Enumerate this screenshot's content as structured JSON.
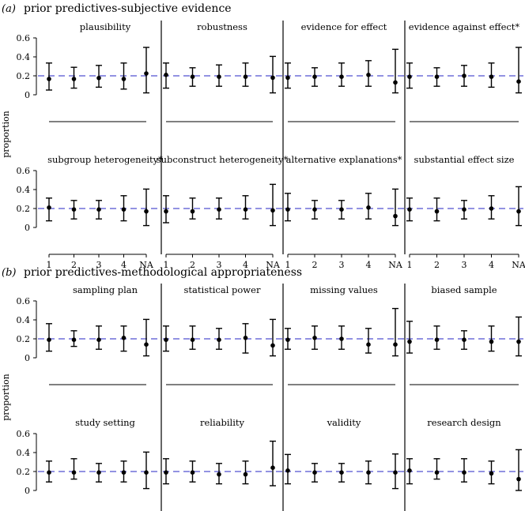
{
  "figure": {
    "section_a_label": "(a)",
    "section_a_title": "prior predictives-subjective evidence",
    "section_b_label": "(b)",
    "section_b_title": "prior predictives-methodological appropriateness",
    "ylabel": "proportion",
    "reference_line": 0.2,
    "colors": {
      "reference": "#6f6fd8",
      "marks": "#000000"
    }
  },
  "chart_data": [
    {
      "type": "errorbar",
      "title": "plausibility",
      "section": "a",
      "row": 0,
      "col": 0,
      "categories": [
        "1",
        "2",
        "3",
        "4",
        "NA"
      ],
      "ylim": [
        0,
        0.6
      ],
      "yticks": [
        "0",
        "0.2",
        "0.4",
        "0.6"
      ],
      "ylabel": "proportion",
      "hline": 0.2,
      "points": [
        0.167,
        0.167,
        0.177,
        0.167,
        0.225
      ],
      "lower": [
        0.05,
        0.07,
        0.08,
        0.06,
        0.02
      ],
      "upper": [
        0.335,
        0.29,
        0.31,
        0.335,
        0.5
      ]
    },
    {
      "type": "errorbar",
      "title": "robustness",
      "section": "a",
      "row": 0,
      "col": 1,
      "categories": [
        "1",
        "2",
        "3",
        "4",
        "NA"
      ],
      "ylim": [
        0,
        0.6
      ],
      "hline": 0.2,
      "points": [
        0.21,
        0.19,
        0.19,
        0.19,
        0.18
      ],
      "lower": [
        0.07,
        0.09,
        0.09,
        0.09,
        0.02
      ],
      "upper": [
        0.335,
        0.285,
        0.315,
        0.335,
        0.405
      ]
    },
    {
      "type": "errorbar",
      "title": "evidence for effect",
      "section": "a",
      "row": 0,
      "col": 2,
      "categories": [
        "1",
        "2",
        "3",
        "4",
        "NA"
      ],
      "ylim": [
        0,
        0.6
      ],
      "hline": 0.2,
      "points": [
        0.18,
        0.19,
        0.19,
        0.21,
        0.13
      ],
      "lower": [
        0.07,
        0.09,
        0.09,
        0.09,
        0.02
      ],
      "upper": [
        0.335,
        0.285,
        0.335,
        0.36,
        0.48
      ]
    },
    {
      "type": "errorbar",
      "title": "evidence against effect*",
      "section": "a",
      "row": 0,
      "col": 3,
      "categories": [
        "1",
        "2",
        "3",
        "4",
        "NA"
      ],
      "ylim": [
        0,
        0.6
      ],
      "hline": 0.2,
      "points": [
        0.19,
        0.19,
        0.2,
        0.19,
        0.14
      ],
      "lower": [
        0.07,
        0.09,
        0.09,
        0.08,
        0.02
      ],
      "upper": [
        0.335,
        0.285,
        0.31,
        0.335,
        0.5
      ]
    },
    {
      "type": "errorbar",
      "title": "subgroup heterogeneity*",
      "section": "a",
      "row": 1,
      "col": 0,
      "categories": [
        "1",
        "2",
        "3",
        "4",
        "NA"
      ],
      "ylim": [
        0,
        0.6
      ],
      "yticks": [
        "0",
        "0.2",
        "0.4",
        "0.6"
      ],
      "ylabel": "proportion",
      "hline": 0.2,
      "points": [
        0.21,
        0.19,
        0.19,
        0.19,
        0.17
      ],
      "lower": [
        0.07,
        0.09,
        0.09,
        0.07,
        0.02
      ],
      "upper": [
        0.31,
        0.285,
        0.285,
        0.335,
        0.405
      ]
    },
    {
      "type": "errorbar",
      "title": "subconstruct heterogeneity*",
      "section": "a",
      "row": 1,
      "col": 1,
      "categories": [
        "1",
        "2",
        "3",
        "4",
        "NA"
      ],
      "ylim": [
        0,
        0.6
      ],
      "hline": 0.2,
      "points": [
        0.17,
        0.17,
        0.19,
        0.19,
        0.18
      ],
      "lower": [
        0.05,
        0.09,
        0.09,
        0.09,
        0.02
      ],
      "upper": [
        0.335,
        0.31,
        0.31,
        0.335,
        0.455
      ]
    },
    {
      "type": "errorbar",
      "title": "alternative explanations*",
      "section": "a",
      "row": 1,
      "col": 2,
      "categories": [
        "1",
        "2",
        "3",
        "4",
        "NA"
      ],
      "ylim": [
        0,
        0.6
      ],
      "hline": 0.2,
      "points": [
        0.19,
        0.19,
        0.19,
        0.21,
        0.12
      ],
      "lower": [
        0.07,
        0.09,
        0.09,
        0.09,
        0.02
      ],
      "upper": [
        0.36,
        0.285,
        0.285,
        0.36,
        0.405
      ]
    },
    {
      "type": "errorbar",
      "title": "substantial effect size",
      "section": "a",
      "row": 1,
      "col": 3,
      "categories": [
        "1",
        "2",
        "3",
        "4",
        "NA"
      ],
      "ylim": [
        0,
        0.6
      ],
      "hline": 0.2,
      "points": [
        0.19,
        0.17,
        0.19,
        0.2,
        0.17
      ],
      "lower": [
        0.07,
        0.07,
        0.09,
        0.09,
        0.02
      ],
      "upper": [
        0.31,
        0.31,
        0.285,
        0.335,
        0.43
      ]
    },
    {
      "type": "errorbar",
      "title": "sampling plan",
      "section": "b",
      "row": 0,
      "col": 0,
      "categories": [
        "1",
        "2",
        "3",
        "4",
        "NA"
      ],
      "ylim": [
        0,
        0.6
      ],
      "yticks": [
        "0",
        "0.2",
        "0.4",
        "0.6"
      ],
      "ylabel": "proportion",
      "hline": 0.2,
      "points": [
        0.19,
        0.19,
        0.19,
        0.21,
        0.14
      ],
      "lower": [
        0.07,
        0.12,
        0.09,
        0.07,
        0.02
      ],
      "upper": [
        0.36,
        0.285,
        0.335,
        0.335,
        0.405
      ]
    },
    {
      "type": "errorbar",
      "title": "statistical power",
      "section": "b",
      "row": 0,
      "col": 1,
      "categories": [
        "1",
        "2",
        "3",
        "4",
        "NA"
      ],
      "ylim": [
        0,
        0.6
      ],
      "hline": 0.2,
      "points": [
        0.19,
        0.19,
        0.19,
        0.21,
        0.13
      ],
      "lower": [
        0.07,
        0.09,
        0.09,
        0.05,
        0.02
      ],
      "upper": [
        0.335,
        0.335,
        0.31,
        0.36,
        0.405
      ]
    },
    {
      "type": "errorbar",
      "title": "missing values",
      "section": "b",
      "row": 0,
      "col": 2,
      "categories": [
        "1",
        "2",
        "3",
        "4",
        "NA"
      ],
      "ylim": [
        0,
        0.6
      ],
      "hline": 0.2,
      "points": [
        0.19,
        0.21,
        0.2,
        0.14,
        0.14
      ],
      "lower": [
        0.09,
        0.09,
        0.09,
        0.05,
        0.02
      ],
      "upper": [
        0.31,
        0.335,
        0.335,
        0.31,
        0.52
      ]
    },
    {
      "type": "errorbar",
      "title": "biased sample",
      "section": "b",
      "row": 0,
      "col": 3,
      "categories": [
        "1",
        "2",
        "3",
        "4",
        "NA"
      ],
      "ylim": [
        0,
        0.6
      ],
      "hline": 0.2,
      "points": [
        0.17,
        0.19,
        0.19,
        0.17,
        0.17
      ],
      "lower": [
        0.05,
        0.09,
        0.09,
        0.07,
        0.02
      ],
      "upper": [
        0.385,
        0.335,
        0.285,
        0.335,
        0.43
      ]
    },
    {
      "type": "errorbar",
      "title": "study setting",
      "section": "b",
      "row": 1,
      "col": 0,
      "categories": [
        "1",
        "2",
        "3",
        "4",
        "NA"
      ],
      "ylim": [
        0,
        0.6
      ],
      "yticks": [
        "0",
        "0.2",
        "0.4",
        "0.6"
      ],
      "ylabel": "proportion",
      "hline": 0.2,
      "points": [
        0.19,
        0.19,
        0.19,
        0.19,
        0.19
      ],
      "lower": [
        0.09,
        0.12,
        0.09,
        0.09,
        0.02
      ],
      "upper": [
        0.31,
        0.335,
        0.285,
        0.31,
        0.405
      ]
    },
    {
      "type": "errorbar",
      "title": "reliability",
      "section": "b",
      "row": 1,
      "col": 1,
      "categories": [
        "1",
        "2",
        "3",
        "4",
        "NA"
      ],
      "ylim": [
        0,
        0.6
      ],
      "hline": 0.2,
      "points": [
        0.19,
        0.19,
        0.17,
        0.17,
        0.24
      ],
      "lower": [
        0.07,
        0.09,
        0.07,
        0.07,
        0.05
      ],
      "upper": [
        0.335,
        0.31,
        0.285,
        0.31,
        0.52
      ]
    },
    {
      "type": "errorbar",
      "title": "validity",
      "section": "b",
      "row": 1,
      "col": 2,
      "categories": [
        "1",
        "2",
        "3",
        "4",
        "NA"
      ],
      "ylim": [
        0,
        0.6
      ],
      "hline": 0.2,
      "points": [
        0.21,
        0.19,
        0.19,
        0.19,
        0.19
      ],
      "lower": [
        0.07,
        0.09,
        0.09,
        0.07,
        0.02
      ],
      "upper": [
        0.38,
        0.285,
        0.285,
        0.31,
        0.385
      ]
    },
    {
      "type": "errorbar",
      "title": "research design",
      "section": "b",
      "row": 1,
      "col": 3,
      "categories": [
        "1",
        "2",
        "3",
        "4",
        "NA"
      ],
      "ylim": [
        0,
        0.6
      ],
      "hline": 0.2,
      "points": [
        0.21,
        0.19,
        0.19,
        0.18,
        0.12
      ],
      "lower": [
        0.07,
        0.12,
        0.09,
        0.07,
        0.0
      ],
      "upper": [
        0.335,
        0.335,
        0.335,
        0.31,
        0.43
      ]
    }
  ]
}
